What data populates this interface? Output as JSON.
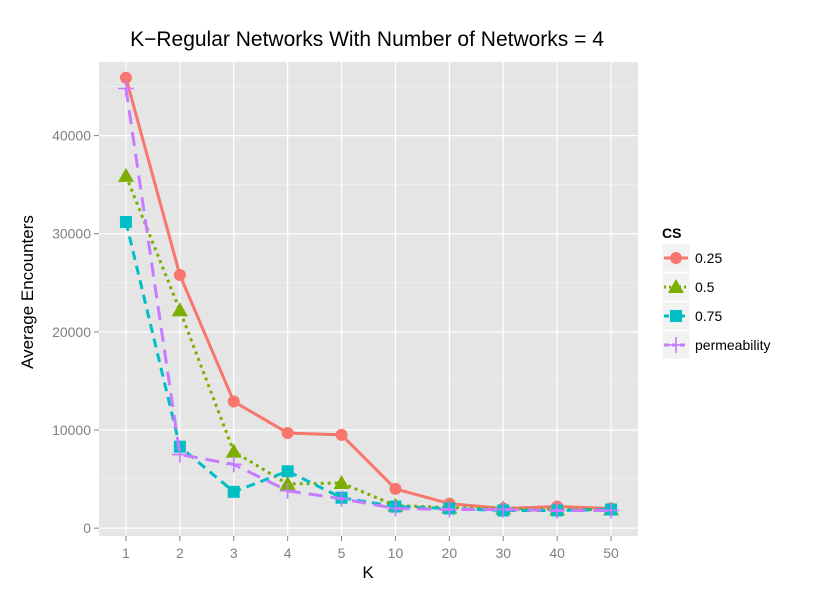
{
  "chart_data": {
    "type": "line",
    "title": "K−Regular Networks With Number of Networks = 4",
    "xlabel": "K",
    "ylabel": "Average Encounters",
    "categories": [
      "1",
      "2",
      "3",
      "4",
      "5",
      "10",
      "20",
      "30",
      "40",
      "50"
    ],
    "ylim": [
      -800,
      47500
    ],
    "yticks": [
      0,
      10000,
      20000,
      30000,
      40000
    ],
    "ytick_labels": [
      "0",
      "10000",
      "20000",
      "30000",
      "40000"
    ],
    "grid": true,
    "legend": {
      "title": "CS",
      "position": "right"
    },
    "series": [
      {
        "name": "0.25",
        "color": "#F8766D",
        "marker": "circle",
        "linestyle": "solid",
        "values": [
          45900,
          25800,
          12900,
          9700,
          9500,
          4000,
          2500,
          2000,
          2200,
          2000
        ]
      },
      {
        "name": "0.5",
        "color": "#7CAE00",
        "marker": "triangle",
        "linestyle": "dotted",
        "values": [
          35900,
          22200,
          7800,
          4500,
          4600,
          2300,
          2100,
          2000,
          1900,
          1900
        ]
      },
      {
        "name": "0.75",
        "color": "#00BFC4",
        "marker": "square",
        "linestyle": "dashed",
        "values": [
          31200,
          8300,
          3700,
          5800,
          3100,
          2200,
          2000,
          1800,
          1800,
          1900
        ]
      },
      {
        "name": "permeability",
        "color": "#C77CFF",
        "marker": "cross",
        "linestyle": "longdash",
        "values": [
          44800,
          7500,
          6500,
          3800,
          3000,
          2000,
          1900,
          1900,
          1800,
          1800
        ]
      }
    ]
  }
}
